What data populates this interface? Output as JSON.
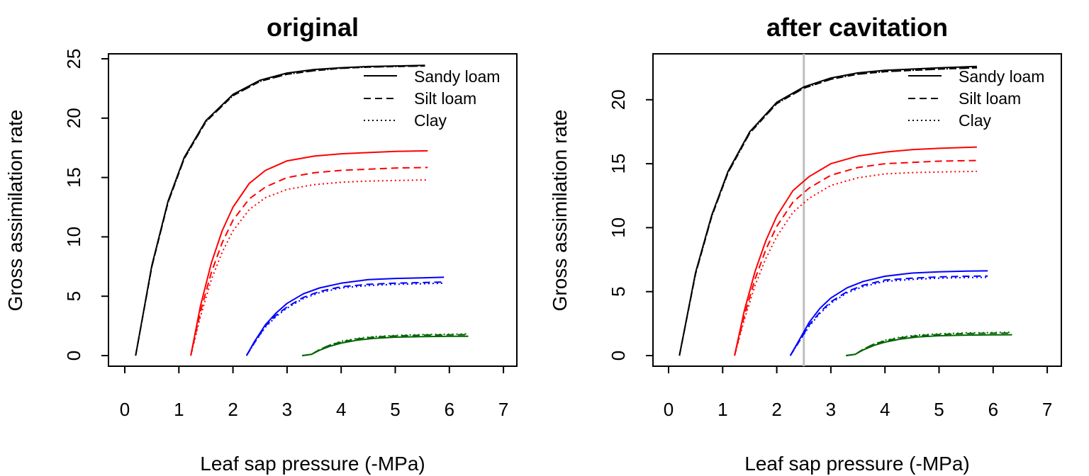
{
  "chart_data": [
    {
      "type": "line",
      "title": "original",
      "xlabel": "Leaf sap pressure (-MPa)",
      "ylabel": "Gross assimilation rate",
      "xlim": [
        0,
        7
      ],
      "ylim": [
        0,
        25
      ],
      "xticks": [
        "0",
        "1",
        "2",
        "3",
        "4",
        "5",
        "6",
        "7"
      ],
      "yticks": [
        "0",
        "5",
        "10",
        "15",
        "20",
        "25"
      ],
      "grid": false,
      "legend": {
        "position": "top-right",
        "entries": [
          {
            "label": "Sandy loam",
            "style": "solid"
          },
          {
            "label": "Silt loam",
            "style": "dashed"
          },
          {
            "label": "Clay",
            "style": "dotted"
          }
        ]
      },
      "series": [
        {
          "soil": "Sandy loam",
          "color": "#000000",
          "style": "solid",
          "x": [
            0.2,
            0.5,
            0.8,
            1.1,
            1.5,
            2.0,
            2.5,
            3.0,
            3.5,
            4.0,
            4.5,
            5.0,
            5.55
          ],
          "y": [
            0,
            7.6,
            13.0,
            16.7,
            19.8,
            22.0,
            23.2,
            23.8,
            24.1,
            24.25,
            24.35,
            24.4,
            24.45
          ]
        },
        {
          "soil": "Silt loam",
          "color": "#000000",
          "style": "dashed",
          "x": [
            0.2,
            0.5,
            0.8,
            1.1,
            1.5,
            2.0,
            2.5,
            3.0,
            3.5,
            4.0,
            4.5,
            5.0,
            5.55
          ],
          "y": [
            0,
            7.5,
            12.9,
            16.6,
            19.7,
            21.9,
            23.1,
            23.7,
            24.0,
            24.2,
            24.3,
            24.35,
            24.4
          ]
        },
        {
          "soil": "Clay",
          "color": "#000000",
          "style": "dotted",
          "x": [
            0.2,
            0.5,
            0.8,
            1.1,
            1.5,
            2.0,
            2.5,
            3.0,
            3.5,
            4.0,
            4.5,
            5.0,
            5.55
          ],
          "y": [
            0,
            7.5,
            12.9,
            16.6,
            19.7,
            21.9,
            23.1,
            23.7,
            24.0,
            24.2,
            24.3,
            24.35,
            24.4
          ]
        },
        {
          "soil": "Sandy loam",
          "color": "#ff0000",
          "style": "solid",
          "x": [
            1.22,
            1.4,
            1.6,
            1.8,
            2.0,
            2.3,
            2.6,
            3.0,
            3.5,
            4.0,
            4.5,
            5.0,
            5.6
          ],
          "y": [
            0,
            4.2,
            7.8,
            10.5,
            12.5,
            14.5,
            15.6,
            16.4,
            16.8,
            17.0,
            17.1,
            17.2,
            17.25
          ]
        },
        {
          "soil": "Silt loam",
          "color": "#ff0000",
          "style": "dashed",
          "x": [
            1.22,
            1.4,
            1.6,
            1.8,
            2.0,
            2.3,
            2.6,
            3.0,
            3.5,
            4.0,
            4.5,
            5.0,
            5.6
          ],
          "y": [
            0,
            3.7,
            7.0,
            9.5,
            11.4,
            13.2,
            14.2,
            15.0,
            15.4,
            15.6,
            15.7,
            15.8,
            15.85
          ]
        },
        {
          "soil": "Clay",
          "color": "#ff0000",
          "style": "dotted",
          "x": [
            1.22,
            1.4,
            1.6,
            1.8,
            2.0,
            2.3,
            2.6,
            3.0,
            3.5,
            4.0,
            4.5,
            5.0,
            5.6
          ],
          "y": [
            0,
            3.3,
            6.4,
            8.7,
            10.5,
            12.3,
            13.3,
            14.0,
            14.4,
            14.6,
            14.7,
            14.75,
            14.8
          ]
        },
        {
          "soil": "Sandy loam",
          "color": "#0000ff",
          "style": "solid",
          "x": [
            2.25,
            2.4,
            2.6,
            2.8,
            3.0,
            3.3,
            3.6,
            4.0,
            4.5,
            5.0,
            5.5,
            5.9
          ],
          "y": [
            0,
            1.2,
            2.6,
            3.6,
            4.4,
            5.2,
            5.7,
            6.1,
            6.4,
            6.5,
            6.55,
            6.6
          ]
        },
        {
          "soil": "Silt loam",
          "color": "#0000ff",
          "style": "dashed",
          "x": [
            2.25,
            2.4,
            2.6,
            2.8,
            3.0,
            3.3,
            3.6,
            4.0,
            4.5,
            5.0,
            5.5,
            5.9
          ],
          "y": [
            0,
            1.1,
            2.5,
            3.4,
            4.1,
            4.9,
            5.4,
            5.8,
            6.0,
            6.1,
            6.15,
            6.2
          ]
        },
        {
          "soil": "Clay",
          "color": "#0000ff",
          "style": "dotted",
          "x": [
            2.25,
            2.4,
            2.6,
            2.8,
            3.0,
            3.3,
            3.6,
            4.0,
            4.5,
            5.0,
            5.5,
            5.9
          ],
          "y": [
            0,
            1.1,
            2.4,
            3.3,
            4.0,
            4.8,
            5.3,
            5.7,
            5.9,
            6.0,
            6.05,
            6.1
          ]
        },
        {
          "soil": "Sandy loam",
          "color": "#006400",
          "style": "solid",
          "x": [
            3.28,
            3.45,
            3.6,
            3.8,
            4.0,
            4.3,
            4.6,
            5.0,
            5.5,
            6.0,
            6.35
          ],
          "y": [
            0,
            0.1,
            0.45,
            0.8,
            1.05,
            1.3,
            1.45,
            1.55,
            1.6,
            1.62,
            1.63
          ]
        },
        {
          "soil": "Silt loam",
          "color": "#006400",
          "style": "dashed",
          "x": [
            3.28,
            3.45,
            3.6,
            3.8,
            4.0,
            4.3,
            4.6,
            5.0,
            5.5,
            6.0,
            6.35
          ],
          "y": [
            0,
            0.1,
            0.5,
            0.9,
            1.15,
            1.4,
            1.55,
            1.65,
            1.72,
            1.75,
            1.76
          ]
        },
        {
          "soil": "Clay",
          "color": "#006400",
          "style": "dotted",
          "x": [
            3.28,
            3.45,
            3.6,
            3.8,
            4.0,
            4.3,
            4.6,
            5.0,
            5.5,
            6.0,
            6.35
          ],
          "y": [
            0,
            0.1,
            0.5,
            0.9,
            1.2,
            1.45,
            1.6,
            1.7,
            1.77,
            1.8,
            1.82
          ]
        }
      ]
    },
    {
      "type": "line",
      "title": "after cavitation",
      "xlabel": "Leaf sap pressure (-MPa)",
      "ylabel": "Gross assimilation rate",
      "xlim": [
        0,
        7
      ],
      "ylim": [
        0,
        22
      ],
      "xticks": [
        "0",
        "1",
        "2",
        "3",
        "4",
        "5",
        "6",
        "7"
      ],
      "yticks": [
        "0",
        "5",
        "10",
        "15",
        "20"
      ],
      "grid": false,
      "vline": {
        "x": 2.5,
        "color": "#bebebe"
      },
      "legend": {
        "position": "top-right",
        "entries": [
          {
            "label": "Sandy loam",
            "style": "solid"
          },
          {
            "label": "Silt loam",
            "style": "dashed"
          },
          {
            "label": "Clay",
            "style": "dotted"
          }
        ]
      },
      "series": [
        {
          "soil": "Sandy loam",
          "color": "#000000",
          "style": "solid",
          "x": [
            0.2,
            0.5,
            0.8,
            1.1,
            1.5,
            2.0,
            2.5,
            3.0,
            3.5,
            4.0,
            4.5,
            5.0,
            5.7
          ],
          "y": [
            0,
            6.5,
            11.0,
            14.4,
            17.5,
            19.8,
            21.0,
            21.7,
            22.1,
            22.3,
            22.4,
            22.5,
            22.6
          ]
        },
        {
          "soil": "Silt loam",
          "color": "#000000",
          "style": "dashed",
          "x": [
            0.2,
            0.5,
            0.8,
            1.1,
            1.5,
            2.0,
            2.5,
            3.0,
            3.5,
            4.0,
            4.5,
            5.0,
            5.7
          ],
          "y": [
            0,
            6.4,
            10.9,
            14.3,
            17.4,
            19.7,
            20.9,
            21.6,
            22.0,
            22.2,
            22.3,
            22.4,
            22.5
          ]
        },
        {
          "soil": "Clay",
          "color": "#000000",
          "style": "dotted",
          "x": [
            0.2,
            0.5,
            0.8,
            1.1,
            1.5,
            2.0,
            2.5,
            3.0,
            3.5,
            4.0,
            4.5,
            5.0,
            5.7
          ],
          "y": [
            0,
            6.4,
            10.9,
            14.3,
            17.4,
            19.7,
            20.9,
            21.6,
            22.0,
            22.2,
            22.3,
            22.4,
            22.5
          ]
        },
        {
          "soil": "Sandy loam",
          "color": "#ff0000",
          "style": "solid",
          "x": [
            1.22,
            1.4,
            1.6,
            1.8,
            2.0,
            2.3,
            2.6,
            3.0,
            3.5,
            4.0,
            4.5,
            5.0,
            5.7
          ],
          "y": [
            0,
            3.5,
            6.6,
            9.0,
            10.9,
            12.9,
            14.0,
            15.0,
            15.6,
            15.9,
            16.1,
            16.2,
            16.3
          ]
        },
        {
          "soil": "Silt loam",
          "color": "#ff0000",
          "style": "dashed",
          "x": [
            1.22,
            1.4,
            1.6,
            1.8,
            2.0,
            2.3,
            2.6,
            3.0,
            3.5,
            4.0,
            4.5,
            5.0,
            5.7
          ],
          "y": [
            0,
            3.1,
            6.0,
            8.3,
            10.1,
            12.0,
            13.1,
            14.1,
            14.7,
            15.0,
            15.1,
            15.2,
            15.25
          ]
        },
        {
          "soil": "Clay",
          "color": "#ff0000",
          "style": "dotted",
          "x": [
            1.22,
            1.4,
            1.6,
            1.8,
            2.0,
            2.3,
            2.6,
            3.0,
            3.5,
            4.0,
            4.5,
            5.0,
            5.7
          ],
          "y": [
            0,
            2.8,
            5.5,
            7.6,
            9.3,
            11.2,
            12.3,
            13.3,
            13.9,
            14.2,
            14.3,
            14.35,
            14.4
          ]
        },
        {
          "soil": "Sandy loam",
          "color": "#0000ff",
          "style": "solid",
          "x": [
            2.25,
            2.4,
            2.6,
            2.8,
            3.0,
            3.3,
            3.6,
            4.0,
            4.5,
            5.0,
            5.5,
            5.9
          ],
          "y": [
            0,
            1.1,
            2.6,
            3.7,
            4.5,
            5.3,
            5.8,
            6.2,
            6.45,
            6.55,
            6.6,
            6.62
          ]
        },
        {
          "soil": "Silt loam",
          "color": "#0000ff",
          "style": "dashed",
          "x": [
            2.25,
            2.4,
            2.6,
            2.8,
            3.0,
            3.3,
            3.6,
            4.0,
            4.5,
            5.0,
            5.5,
            5.9
          ],
          "y": [
            0,
            1.0,
            2.4,
            3.4,
            4.2,
            5.0,
            5.5,
            5.9,
            6.05,
            6.15,
            6.2,
            6.22
          ]
        },
        {
          "soil": "Clay",
          "color": "#0000ff",
          "style": "dotted",
          "x": [
            2.25,
            2.4,
            2.6,
            2.8,
            3.0,
            3.3,
            3.6,
            4.0,
            4.5,
            5.0,
            5.5,
            5.9
          ],
          "y": [
            0,
            1.0,
            2.3,
            3.3,
            4.1,
            4.9,
            5.4,
            5.8,
            5.95,
            6.05,
            6.1,
            6.12
          ]
        },
        {
          "soil": "Sandy loam",
          "color": "#006400",
          "style": "solid",
          "x": [
            3.28,
            3.45,
            3.6,
            3.8,
            4.0,
            4.3,
            4.6,
            5.0,
            5.5,
            6.0,
            6.35
          ],
          "y": [
            0,
            0.1,
            0.45,
            0.8,
            1.05,
            1.3,
            1.45,
            1.55,
            1.6,
            1.62,
            1.63
          ]
        },
        {
          "soil": "Silt loam",
          "color": "#006400",
          "style": "dashed",
          "x": [
            3.28,
            3.45,
            3.6,
            3.8,
            4.0,
            4.3,
            4.6,
            5.0,
            5.5,
            6.0,
            6.35
          ],
          "y": [
            0,
            0.1,
            0.5,
            0.9,
            1.15,
            1.4,
            1.55,
            1.65,
            1.72,
            1.75,
            1.76
          ]
        },
        {
          "soil": "Clay",
          "color": "#006400",
          "style": "dotted",
          "x": [
            3.28,
            3.45,
            3.6,
            3.8,
            4.0,
            4.3,
            4.6,
            5.0,
            5.5,
            6.0,
            6.35
          ],
          "y": [
            0,
            0.1,
            0.5,
            0.9,
            1.2,
            1.45,
            1.6,
            1.7,
            1.77,
            1.8,
            1.82
          ]
        }
      ]
    }
  ]
}
